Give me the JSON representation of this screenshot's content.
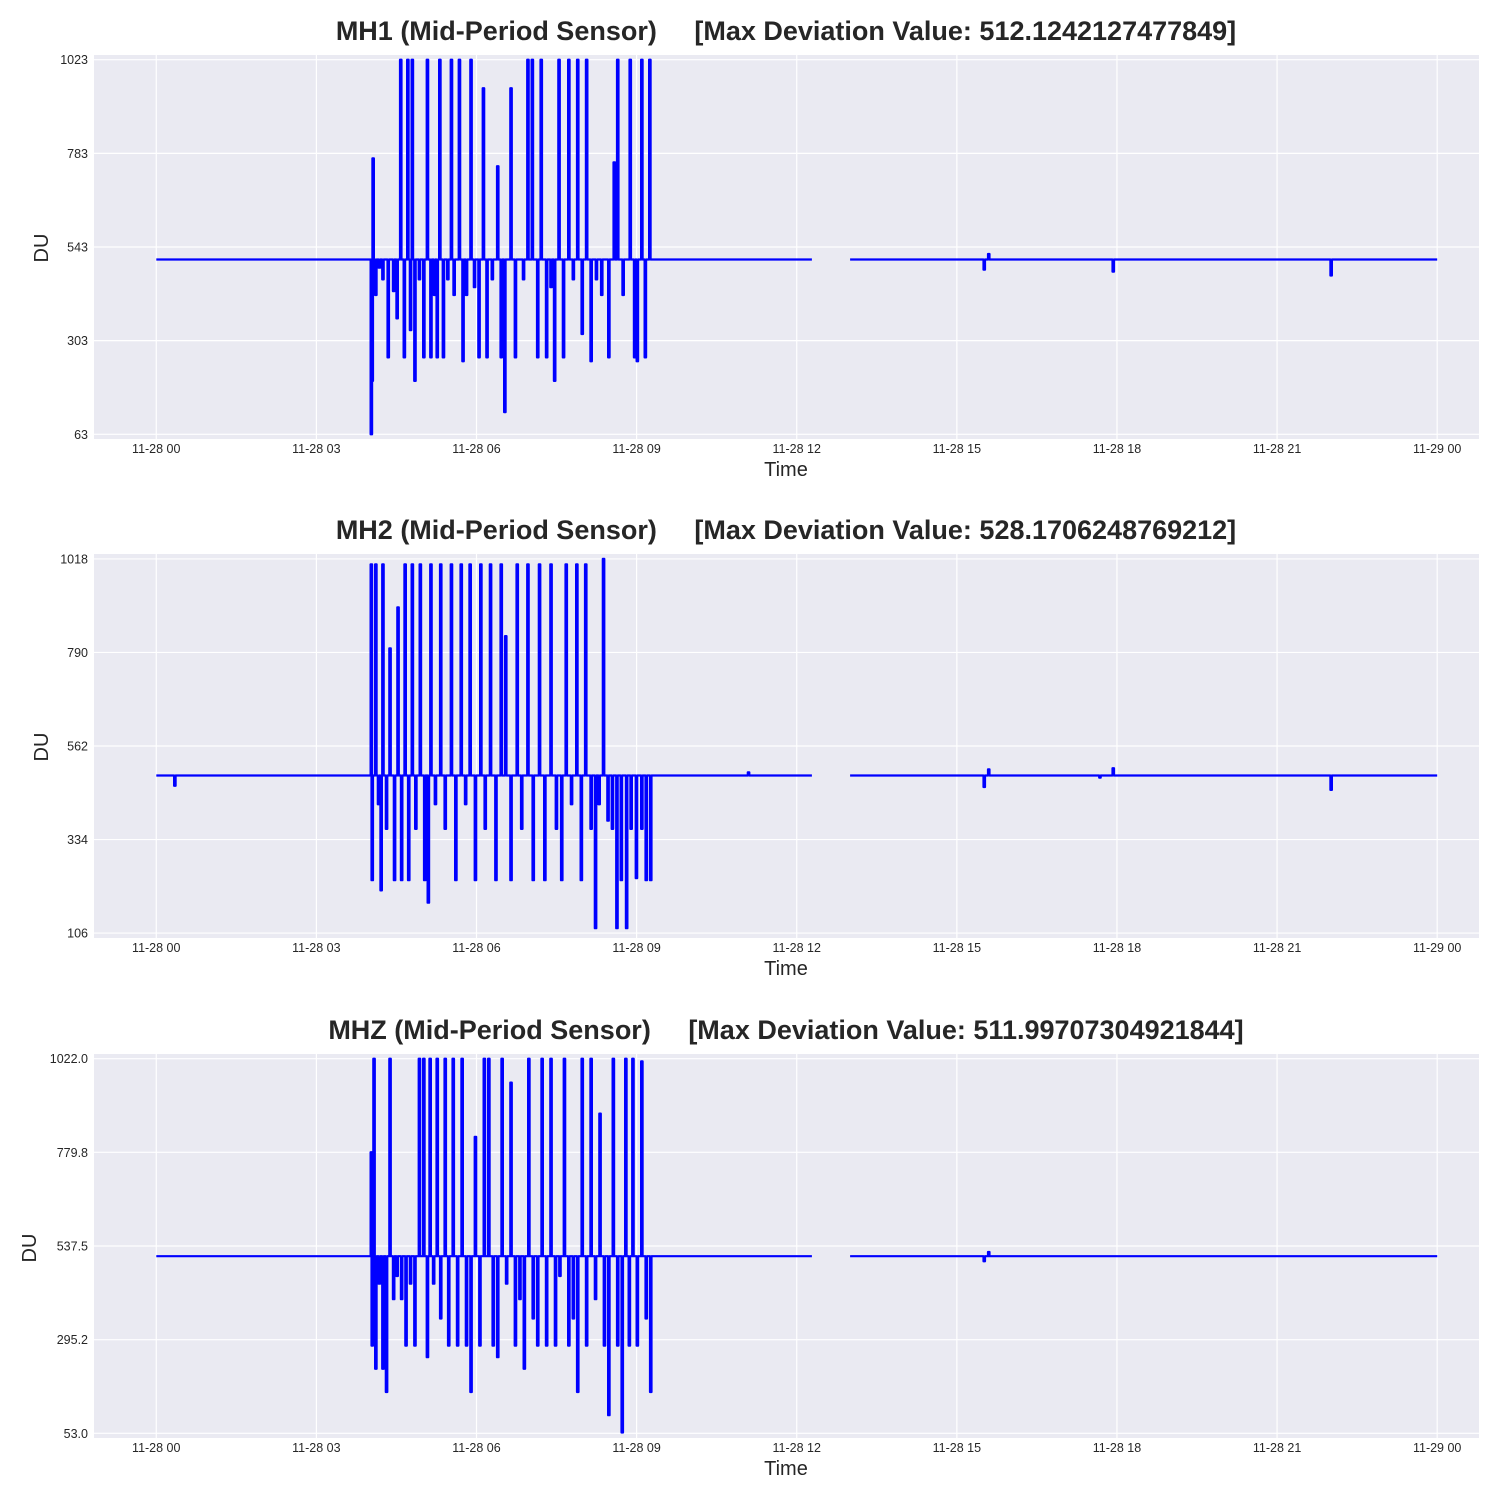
{
  "colors": {
    "line": "#0000ff",
    "plot_background": "#eaeaf2",
    "grid": "#ffffff",
    "text": "#262626"
  },
  "chart_data": [
    {
      "type": "line",
      "title": "MH1 (Mid-Period Sensor)     [Max Deviation Value: 512.1242127477849]",
      "xlabel": "Time",
      "ylabel": "DU",
      "xlim": [
        "2023-11-27 22:50",
        "2023-11-29 00:47"
      ],
      "ylim": [
        51,
        1035
      ],
      "x_ticks": [
        "11-28 00",
        "11-28 03",
        "11-28 06",
        "11-28 09",
        "11-28 12",
        "11-28 15",
        "11-28 18",
        "11-28 21",
        "11-29 00"
      ],
      "y_ticks": [
        "63",
        "303",
        "543",
        "783",
        "1023"
      ],
      "grid": true,
      "baseline": 511,
      "segments": [
        [
          "2023-11-28 00:00",
          "2023-11-28 12:17"
        ],
        [
          "2023-11-28 13:00",
          "2023-11-29 00:00"
        ]
      ],
      "events": [
        [
          "2023-11-28 04:01",
          63
        ],
        [
          "2023-11-28 04:02",
          200
        ],
        [
          "2023-11-28 04:03",
          770
        ],
        [
          "2023-11-28 04:06",
          420
        ],
        [
          "2023-11-28 04:10",
          490
        ],
        [
          "2023-11-28 04:14",
          460
        ],
        [
          "2023-11-28 04:20",
          260
        ],
        [
          "2023-11-28 04:26",
          430
        ],
        [
          "2023-11-28 04:30",
          360
        ],
        [
          "2023-11-28 04:34",
          1023
        ],
        [
          "2023-11-28 04:38",
          260
        ],
        [
          "2023-11-28 04:42",
          1023
        ],
        [
          "2023-11-28 04:45",
          330
        ],
        [
          "2023-11-28 04:47",
          1023
        ],
        [
          "2023-11-28 04:50",
          200
        ],
        [
          "2023-11-28 04:55",
          460
        ],
        [
          "2023-11-28 05:00",
          260
        ],
        [
          "2023-11-28 05:04",
          1023
        ],
        [
          "2023-11-28 05:08",
          260
        ],
        [
          "2023-11-28 05:12",
          420
        ],
        [
          "2023-11-28 05:15",
          260
        ],
        [
          "2023-11-28 05:18",
          1023
        ],
        [
          "2023-11-28 05:22",
          260
        ],
        [
          "2023-11-28 05:27",
          460
        ],
        [
          "2023-11-28 05:31",
          1023
        ],
        [
          "2023-11-28 05:34",
          420
        ],
        [
          "2023-11-28 05:40",
          1023
        ],
        [
          "2023-11-28 05:44",
          250
        ],
        [
          "2023-11-28 05:48",
          420
        ],
        [
          "2023-11-28 05:53",
          1023
        ],
        [
          "2023-11-28 05:57",
          440
        ],
        [
          "2023-11-28 06:02",
          260
        ],
        [
          "2023-11-28 06:07",
          950
        ],
        [
          "2023-11-28 06:11",
          260
        ],
        [
          "2023-11-28 06:17",
          460
        ],
        [
          "2023-11-28 06:23",
          750
        ],
        [
          "2023-11-28 06:27",
          260
        ],
        [
          "2023-11-28 06:31",
          120
        ],
        [
          "2023-11-28 06:38",
          950
        ],
        [
          "2023-11-28 06:43",
          260
        ],
        [
          "2023-11-28 06:52",
          460
        ],
        [
          "2023-11-28 06:57",
          1023
        ],
        [
          "2023-11-28 07:02",
          1023
        ],
        [
          "2023-11-28 07:08",
          260
        ],
        [
          "2023-11-28 07:12",
          1023
        ],
        [
          "2023-11-28 07:18",
          260
        ],
        [
          "2023-11-28 07:23",
          440
        ],
        [
          "2023-11-28 07:27",
          200
        ],
        [
          "2023-11-28 07:32",
          1023
        ],
        [
          "2023-11-28 07:37",
          260
        ],
        [
          "2023-11-28 07:43",
          1023
        ],
        [
          "2023-11-28 07:48",
          460
        ],
        [
          "2023-11-28 07:53",
          1023
        ],
        [
          "2023-11-28 07:58",
          320
        ],
        [
          "2023-11-28 08:03",
          1023
        ],
        [
          "2023-11-28 08:08",
          250
        ],
        [
          "2023-11-28 08:14",
          460
        ],
        [
          "2023-11-28 08:20",
          420
        ],
        [
          "2023-11-28 08:28",
          260
        ],
        [
          "2023-11-28 08:34",
          760
        ],
        [
          "2023-11-28 08:38",
          1023
        ],
        [
          "2023-11-28 08:44",
          420
        ],
        [
          "2023-11-28 08:52",
          1023
        ],
        [
          "2023-11-28 08:57",
          260
        ],
        [
          "2023-11-28 09:00",
          250
        ],
        [
          "2023-11-28 09:05",
          1023
        ],
        [
          "2023-11-28 09:09",
          260
        ],
        [
          "2023-11-28 09:14",
          1023
        ]
      ],
      "minor_events": [
        [
          "2023-11-28 15:30",
          485
        ],
        [
          "2023-11-28 15:35",
          525
        ],
        [
          "2023-11-28 17:55",
          480
        ],
        [
          "2023-11-28 22:00",
          470
        ]
      ]
    },
    {
      "type": "line",
      "title": "MH2 (Mid-Period Sensor)     [Max Deviation Value: 528.1706248769212]",
      "xlabel": "Time",
      "ylabel": "DU",
      "xlim": [
        "2023-11-27 22:50",
        "2023-11-29 00:47"
      ],
      "ylim": [
        94,
        1030
      ],
      "x_ticks": [
        "11-28 00",
        "11-28 03",
        "11-28 06",
        "11-28 09",
        "11-28 12",
        "11-28 15",
        "11-28 18",
        "11-28 21",
        "11-29 00"
      ],
      "y_ticks": [
        "106",
        "334",
        "562",
        "790",
        "1018"
      ],
      "grid": true,
      "baseline": 490,
      "segments": [
        [
          "2023-11-28 00:00",
          "2023-11-28 12:17"
        ],
        [
          "2023-11-28 13:00",
          "2023-11-29 00:00"
        ]
      ],
      "events": [
        [
          "2023-11-28 04:01",
          1005
        ],
        [
          "2023-11-28 04:02",
          235
        ],
        [
          "2023-11-28 04:06",
          1005
        ],
        [
          "2023-11-28 04:09",
          420
        ],
        [
          "2023-11-28 04:12",
          210
        ],
        [
          "2023-11-28 04:14",
          1005
        ],
        [
          "2023-11-28 04:18",
          360
        ],
        [
          "2023-11-28 04:22",
          800
        ],
        [
          "2023-11-28 04:27",
          235
        ],
        [
          "2023-11-28 04:31",
          900
        ],
        [
          "2023-11-28 04:35",
          235
        ],
        [
          "2023-11-28 04:39",
          1005
        ],
        [
          "2023-11-28 04:43",
          235
        ],
        [
          "2023-11-28 04:47",
          1005
        ],
        [
          "2023-11-28 04:51",
          360
        ],
        [
          "2023-11-28 04:56",
          1005
        ],
        [
          "2023-11-28 05:01",
          235
        ],
        [
          "2023-11-28 05:05",
          180
        ],
        [
          "2023-11-28 05:08",
          1005
        ],
        [
          "2023-11-28 05:13",
          420
        ],
        [
          "2023-11-28 05:19",
          1005
        ],
        [
          "2023-11-28 05:24",
          360
        ],
        [
          "2023-11-28 05:31",
          1005
        ],
        [
          "2023-11-28 05:36",
          235
        ],
        [
          "2023-11-28 05:42",
          1005
        ],
        [
          "2023-11-28 05:47",
          420
        ],
        [
          "2023-11-28 05:52",
          1005
        ],
        [
          "2023-11-28 05:58",
          235
        ],
        [
          "2023-11-28 06:04",
          1005
        ],
        [
          "2023-11-28 06:09",
          360
        ],
        [
          "2023-11-28 06:15",
          1005
        ],
        [
          "2023-11-28 06:21",
          235
        ],
        [
          "2023-11-28 06:27",
          1005
        ],
        [
          "2023-11-28 06:32",
          830
        ],
        [
          "2023-11-28 06:38",
          235
        ],
        [
          "2023-11-28 06:45",
          1005
        ],
        [
          "2023-11-28 06:50",
          360
        ],
        [
          "2023-11-28 06:57",
          1005
        ],
        [
          "2023-11-28 07:03",
          235
        ],
        [
          "2023-11-28 07:10",
          1005
        ],
        [
          "2023-11-28 07:16",
          235
        ],
        [
          "2023-11-28 07:23",
          1005
        ],
        [
          "2023-11-28 07:29",
          360
        ],
        [
          "2023-11-28 07:35",
          235
        ],
        [
          "2023-11-28 07:40",
          1005
        ],
        [
          "2023-11-28 07:46",
          420
        ],
        [
          "2023-11-28 07:52",
          1005
        ],
        [
          "2023-11-28 07:57",
          235
        ],
        [
          "2023-11-28 08:02",
          1005
        ],
        [
          "2023-11-28 08:08",
          360
        ],
        [
          "2023-11-28 08:13",
          118
        ],
        [
          "2023-11-28 08:17",
          420
        ],
        [
          "2023-11-28 08:22",
          1018
        ],
        [
          "2023-11-28 08:27",
          380
        ],
        [
          "2023-11-28 08:32",
          360
        ],
        [
          "2023-11-28 08:37",
          118
        ],
        [
          "2023-11-28 08:42",
          235
        ],
        [
          "2023-11-28 08:48",
          118
        ],
        [
          "2023-11-28 08:53",
          360
        ],
        [
          "2023-11-28 08:59",
          240
        ],
        [
          "2023-11-28 09:05",
          360
        ],
        [
          "2023-11-28 09:10",
          235
        ],
        [
          "2023-11-28 09:15",
          235
        ]
      ],
      "minor_events": [
        [
          "2023-11-28 00:20",
          465
        ],
        [
          "2023-11-28 11:05",
          498
        ],
        [
          "2023-11-28 15:30",
          462
        ],
        [
          "2023-11-28 15:35",
          505
        ],
        [
          "2023-11-28 17:40",
          485
        ],
        [
          "2023-11-28 17:55",
          508
        ],
        [
          "2023-11-28 22:00",
          455
        ]
      ]
    },
    {
      "type": "line",
      "title": "MHZ (Mid-Period Sensor)     [Max Deviation Value: 511.99707304921844]",
      "xlabel": "Time",
      "ylabel": "DU",
      "xlim": [
        "2023-11-27 22:50",
        "2023-11-29 00:47"
      ],
      "ylim": [
        40.9,
        1034.1
      ],
      "x_ticks": [
        "11-28 00",
        "11-28 03",
        "11-28 06",
        "11-28 09",
        "11-28 12",
        "11-28 15",
        "11-28 18",
        "11-28 21",
        "11-29 00"
      ],
      "y_ticks": [
        "53.0",
        "295.2",
        "537.5",
        "779.8",
        "1022.0"
      ],
      "grid": true,
      "baseline": 511,
      "segments": [
        [
          "2023-11-28 00:00",
          "2023-11-28 12:17"
        ],
        [
          "2023-11-28 13:00",
          "2023-11-29 00:00"
        ]
      ],
      "events": [
        [
          "2023-11-28 04:01",
          780
        ],
        [
          "2023-11-28 04:02",
          280
        ],
        [
          "2023-11-28 04:04",
          1022
        ],
        [
          "2023-11-28 04:06",
          220
        ],
        [
          "2023-11-28 04:10",
          440
        ],
        [
          "2023-11-28 04:14",
          220
        ],
        [
          "2023-11-28 04:18",
          160
        ],
        [
          "2023-11-28 04:22",
          1022
        ],
        [
          "2023-11-28 04:26",
          400
        ],
        [
          "2023-11-28 04:30",
          460
        ],
        [
          "2023-11-28 04:35",
          400
        ],
        [
          "2023-11-28 04:40",
          280
        ],
        [
          "2023-11-28 04:45",
          440
        ],
        [
          "2023-11-28 04:50",
          280
        ],
        [
          "2023-11-28 04:55",
          1022
        ],
        [
          "2023-11-28 05:00",
          1022
        ],
        [
          "2023-11-28 05:04",
          250
        ],
        [
          "2023-11-28 05:07",
          1022
        ],
        [
          "2023-11-28 05:11",
          440
        ],
        [
          "2023-11-28 05:15",
          1022
        ],
        [
          "2023-11-28 05:19",
          350
        ],
        [
          "2023-11-28 05:24",
          1022
        ],
        [
          "2023-11-28 05:28",
          280
        ],
        [
          "2023-11-28 05:33",
          1022
        ],
        [
          "2023-11-28 05:38",
          280
        ],
        [
          "2023-11-28 05:43",
          1022
        ],
        [
          "2023-11-28 05:48",
          280
        ],
        [
          "2023-11-28 05:53",
          160
        ],
        [
          "2023-11-28 05:58",
          820
        ],
        [
          "2023-11-28 06:03",
          280
        ],
        [
          "2023-11-28 06:08",
          1022
        ],
        [
          "2023-11-28 06:13",
          1022
        ],
        [
          "2023-11-28 06:18",
          280
        ],
        [
          "2023-11-28 06:23",
          250
        ],
        [
          "2023-11-28 06:28",
          1022
        ],
        [
          "2023-11-28 06:33",
          440
        ],
        [
          "2023-11-28 06:38",
          960
        ],
        [
          "2023-11-28 06:43",
          280
        ],
        [
          "2023-11-28 06:48",
          400
        ],
        [
          "2023-11-28 06:53",
          220
        ],
        [
          "2023-11-28 06:58",
          1022
        ],
        [
          "2023-11-28 07:03",
          350
        ],
        [
          "2023-11-28 07:08",
          280
        ],
        [
          "2023-11-28 07:13",
          1022
        ],
        [
          "2023-11-28 07:18",
          280
        ],
        [
          "2023-11-28 07:23",
          1022
        ],
        [
          "2023-11-28 07:28",
          280
        ],
        [
          "2023-11-28 07:33",
          460
        ],
        [
          "2023-11-28 07:38",
          1022
        ],
        [
          "2023-11-28 07:43",
          280
        ],
        [
          "2023-11-28 07:48",
          350
        ],
        [
          "2023-11-28 07:53",
          160
        ],
        [
          "2023-11-28 07:58",
          1022
        ],
        [
          "2023-11-28 08:03",
          280
        ],
        [
          "2023-11-28 08:08",
          1022
        ],
        [
          "2023-11-28 08:13",
          400
        ],
        [
          "2023-11-28 08:18",
          880
        ],
        [
          "2023-11-28 08:23",
          280
        ],
        [
          "2023-11-28 08:28",
          100
        ],
        [
          "2023-11-28 08:33",
          1022
        ],
        [
          "2023-11-28 08:38",
          280
        ],
        [
          "2023-11-28 08:43",
          55
        ],
        [
          "2023-11-28 08:47",
          1022
        ],
        [
          "2023-11-28 08:51",
          280
        ],
        [
          "2023-11-28 08:55",
          1022
        ],
        [
          "2023-11-28 09:00",
          280
        ],
        [
          "2023-11-28 09:05",
          1015
        ],
        [
          "2023-11-28 09:10",
          350
        ],
        [
          "2023-11-28 09:15",
          160
        ]
      ],
      "minor_events": [
        [
          "2023-11-28 15:30",
          498
        ],
        [
          "2023-11-28 15:35",
          522
        ]
      ]
    }
  ]
}
